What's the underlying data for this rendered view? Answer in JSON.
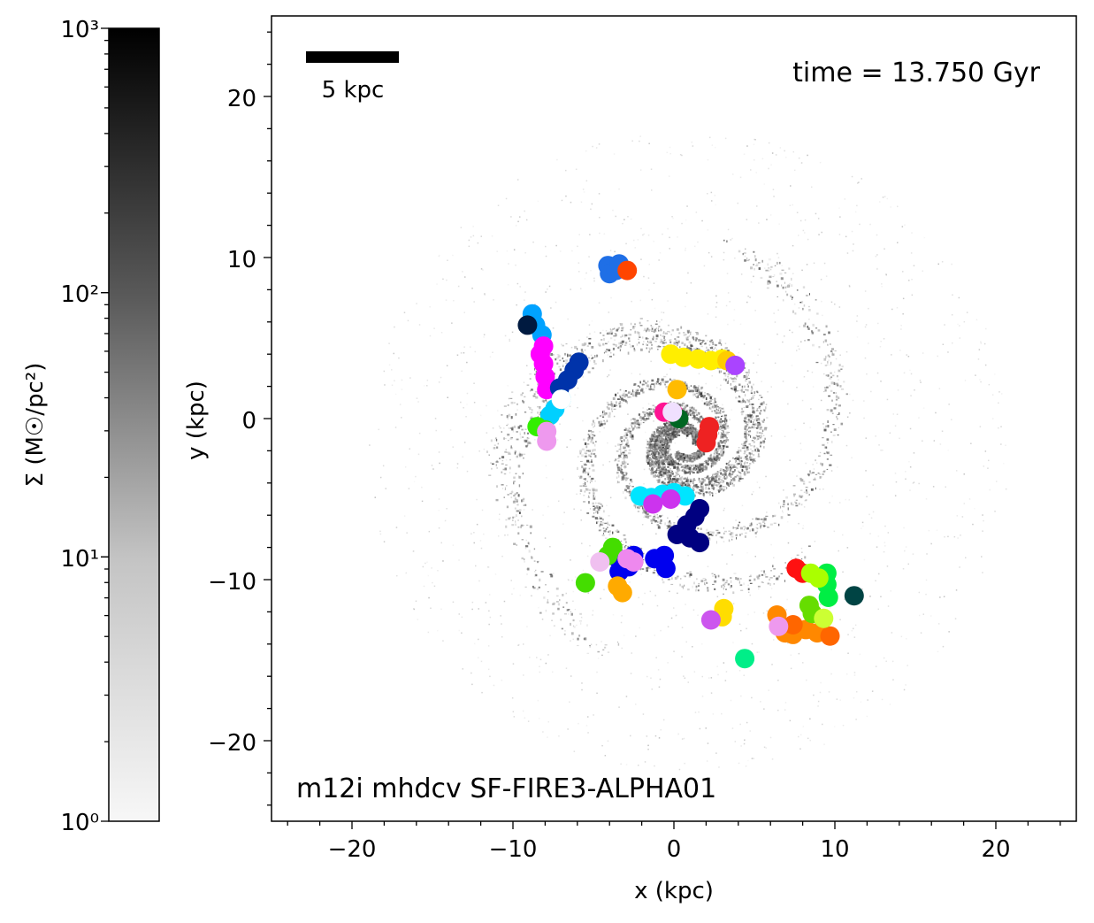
{
  "chart_data": {
    "type": "scatter",
    "background": "gas surface density image (grayscale)",
    "xlabel": "x (kpc)",
    "ylabel": "y (kpc)",
    "xlim": [
      -25,
      25
    ],
    "ylim": [
      -25,
      25
    ],
    "xticks": [
      -20,
      -10,
      0,
      10,
      20
    ],
    "yticks": [
      -20,
      -10,
      0,
      10,
      20
    ],
    "xtick_labels": [
      "−20",
      "−10",
      "0",
      "10",
      "20"
    ],
    "ytick_labels": [
      "−20",
      "−10",
      "0",
      "10",
      "20"
    ],
    "scale_bar": {
      "length_kpc": 5,
      "label": "5 kpc"
    },
    "time_label": "time = 13.750 Gyr",
    "run_label": "m12i mhdcv SF-FIRE3-ALPHA01",
    "colorbar": {
      "label": "Σ (M☉/pc²)",
      "scale": "log",
      "range": [
        1,
        1000
      ],
      "tick_labels": [
        "10³",
        "10²",
        "10¹",
        "10⁰"
      ],
      "tick_values": [
        1000,
        100,
        10,
        1
      ],
      "colors": [
        "#f7f7f7",
        "#000000"
      ]
    },
    "series": [
      {
        "color": "#1f6fe6",
        "points": [
          [
            -4.1,
            9.5
          ],
          [
            -4.0,
            9.0
          ],
          [
            -3.6,
            9.2
          ],
          [
            -3.4,
            9.6
          ]
        ]
      },
      {
        "color": "#ff4500",
        "points": [
          [
            -2.9,
            9.2
          ]
        ]
      },
      {
        "color": "#00a2ff",
        "points": [
          [
            -8.8,
            6.5
          ],
          [
            -8.6,
            5.8
          ],
          [
            -8.2,
            5.2
          ]
        ]
      },
      {
        "color": "#001a40",
        "points": [
          [
            -9.1,
            5.8
          ]
        ]
      },
      {
        "color": "#ff00ff",
        "points": [
          [
            -8.1,
            4.5
          ],
          [
            -8.3,
            4.0
          ],
          [
            -8.1,
            3.4
          ],
          [
            -8.0,
            2.6
          ],
          [
            -7.9,
            1.8
          ]
        ]
      },
      {
        "color": "#0033aa",
        "points": [
          [
            -5.9,
            3.5
          ],
          [
            -6.2,
            3.0
          ],
          [
            -6.6,
            2.4
          ],
          [
            -7.1,
            1.9
          ]
        ]
      },
      {
        "color": "#00d0ff",
        "points": [
          [
            -7.0,
            1.2
          ],
          [
            -7.4,
            0.6
          ],
          [
            -7.7,
            0.2
          ]
        ]
      },
      {
        "color": "#ffffff",
        "points": [
          [
            -7.0,
            1.2
          ]
        ]
      },
      {
        "color": "#33ee00",
        "points": [
          [
            -8.5,
            -0.5
          ],
          [
            -8.0,
            -0.7
          ]
        ]
      },
      {
        "color": "#ee99ee",
        "points": [
          [
            -7.9,
            -0.8
          ],
          [
            -7.9,
            -1.4
          ]
        ]
      },
      {
        "color": "#ffee00",
        "points": [
          [
            -0.2,
            4.0
          ],
          [
            0.6,
            3.8
          ],
          [
            1.5,
            3.7
          ],
          [
            2.3,
            3.6
          ],
          [
            3.0,
            3.7
          ]
        ]
      },
      {
        "color": "#ffcc00",
        "points": [
          [
            3.3,
            3.6
          ]
        ]
      },
      {
        "color": "#aa44ff",
        "points": [
          [
            3.8,
            3.3
          ]
        ]
      },
      {
        "color": "#ffbb00",
        "points": [
          [
            0.2,
            1.8
          ]
        ]
      },
      {
        "color": "#ff1493",
        "points": [
          [
            -0.6,
            0.4
          ],
          [
            0.0,
            0.3
          ]
        ]
      },
      {
        "color": "#006622",
        "points": [
          [
            0.3,
            0.0
          ]
        ]
      },
      {
        "color": "#f0e0ff",
        "points": [
          [
            -0.1,
            0.4
          ]
        ]
      },
      {
        "color": "#ee2222",
        "points": [
          [
            2.2,
            -0.5
          ],
          [
            2.1,
            -1.0
          ],
          [
            2.0,
            -1.5
          ]
        ]
      },
      {
        "color": "#00e5ff",
        "points": [
          [
            -2.1,
            -4.8
          ],
          [
            -1.4,
            -4.9
          ],
          [
            -0.7,
            -4.7
          ],
          [
            0.0,
            -4.6
          ],
          [
            0.7,
            -4.8
          ]
        ]
      },
      {
        "color": "#cc33ee",
        "points": [
          [
            -1.3,
            -5.3
          ],
          [
            -0.2,
            -5.0
          ]
        ]
      },
      {
        "color": "#000080",
        "points": [
          [
            1.6,
            -5.6
          ],
          [
            1.3,
            -6.1
          ],
          [
            0.8,
            -6.6
          ],
          [
            0.2,
            -7.2
          ],
          [
            1.0,
            -7.4
          ],
          [
            1.6,
            -7.7
          ]
        ]
      },
      {
        "color": "#0000ee",
        "points": [
          [
            -3.6,
            -8.6
          ],
          [
            -2.5,
            -8.5
          ],
          [
            -1.2,
            -8.7
          ],
          [
            -0.6,
            -8.5
          ],
          [
            -2.8,
            -9.2
          ],
          [
            -3.4,
            -9.5
          ],
          [
            -0.5,
            -9.3
          ]
        ]
      },
      {
        "color": "#44dd00",
        "points": [
          [
            -3.8,
            -8.0
          ],
          [
            -4.1,
            -8.5
          ],
          [
            -5.5,
            -10.2
          ]
        ]
      },
      {
        "color": "#ffaa00",
        "points": [
          [
            -3.5,
            -10.4
          ],
          [
            -3.2,
            -10.8
          ]
        ]
      },
      {
        "color": "#ee88ee",
        "points": [
          [
            -2.9,
            -8.7
          ],
          [
            -2.5,
            -8.9
          ]
        ]
      },
      {
        "color": "#f0c0f0",
        "points": [
          [
            -4.6,
            -8.9
          ]
        ]
      },
      {
        "color": "#ffdd00",
        "points": [
          [
            3.1,
            -11.8
          ],
          [
            3.0,
            -12.3
          ]
        ]
      },
      {
        "color": "#cc55ee",
        "points": [
          [
            2.3,
            -12.5
          ]
        ]
      },
      {
        "color": "#00ee88",
        "points": [
          [
            4.4,
            -14.9
          ]
        ]
      },
      {
        "color": "#ff8800",
        "points": [
          [
            6.4,
            -12.2
          ],
          [
            6.9,
            -13.3
          ],
          [
            7.4,
            -13.4
          ],
          [
            8.2,
            -13.1
          ],
          [
            8.9,
            -13.3
          ]
        ]
      },
      {
        "color": "#ff6600",
        "points": [
          [
            7.4,
            -12.8
          ],
          [
            9.7,
            -13.5
          ]
        ]
      },
      {
        "color": "#ee99ee",
        "points": [
          [
            6.5,
            -12.9
          ]
        ]
      },
      {
        "color": "#ff1111",
        "points": [
          [
            7.6,
            -9.3
          ],
          [
            8.0,
            -9.6
          ]
        ]
      },
      {
        "color": "#00ee44",
        "points": [
          [
            9.5,
            -9.6
          ],
          [
            9.5,
            -10.3
          ],
          [
            9.6,
            -11.1
          ]
        ]
      },
      {
        "color": "#aaff00",
        "points": [
          [
            8.5,
            -9.6
          ],
          [
            9.0,
            -9.9
          ]
        ]
      },
      {
        "color": "#66dd00",
        "points": [
          [
            8.4,
            -11.6
          ],
          [
            8.6,
            -12.1
          ]
        ]
      },
      {
        "color": "#ccff33",
        "points": [
          [
            9.3,
            -12.4
          ]
        ]
      },
      {
        "color": "#004444",
        "points": [
          [
            11.2,
            -11.0
          ]
        ]
      }
    ]
  }
}
